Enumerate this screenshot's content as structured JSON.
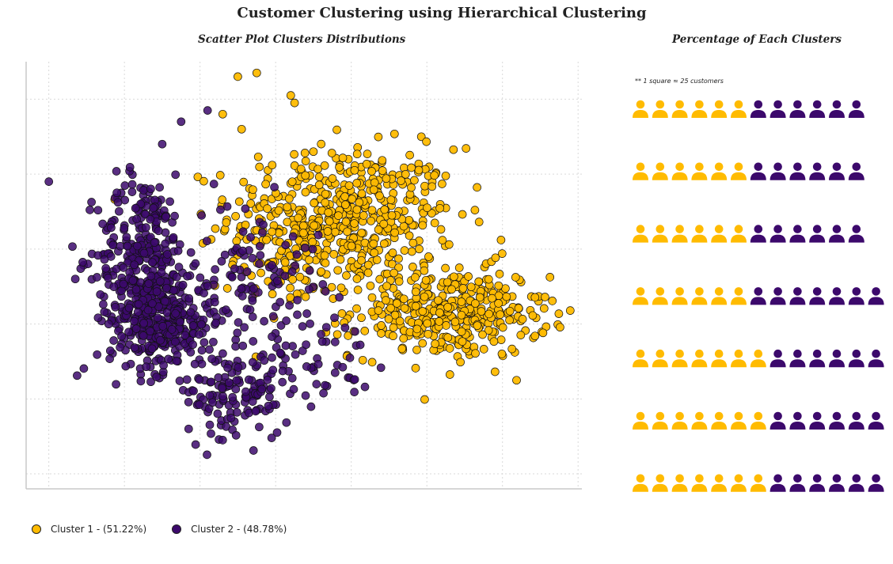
{
  "title": "Customer Clustering using Hierarchical Clustering",
  "scatter_title": "Scatter Plot Clusters Distributions",
  "waffle_title": "Percentage of Each Clusters",
  "waffle_note": "** 1 square ≈ 25 customers",
  "colors": {
    "cluster1": "#FFBB00",
    "cluster2": "#3C096C"
  },
  "legend": [
    {
      "label": "Cluster 1 - (51.22%)",
      "color": "#FFBB00"
    },
    {
      "label": "Cluster 2 - (48.78%)",
      "color": "#3C096C"
    }
  ],
  "chart_data": [
    {
      "type": "scatter",
      "title": "Scatter Plot Clusters Distributions",
      "xlabel": "",
      "ylabel": "",
      "xlim": [
        -3.3,
        4.05
      ],
      "ylim": [
        -2.8,
        2.9
      ],
      "grid": true,
      "tick_labels_visible": false,
      "legend_placement": "bottom-left",
      "series": [
        {
          "name": "Cluster 1 - (51.22%)",
          "color": "#FFBB00",
          "percent": 51.22,
          "clusters": [
            {
              "cx": 0.9,
              "cy": 0.85,
              "sx": 0.75,
              "sy": 0.45,
              "n": 480
            },
            {
              "cx": 2.3,
              "cy": -0.45,
              "sx": 0.65,
              "sy": 0.3,
              "n": 380
            },
            {
              "cx": 0.3,
              "cy": 0.25,
              "sx": 0.45,
              "sy": 0.35,
              "n": 60
            }
          ],
          "outliers": [
            [
              -0.5,
              2.7
            ],
            [
              -0.25,
              2.75
            ],
            [
              0.2,
              2.45
            ],
            [
              0.25,
              2.35
            ],
            [
              -0.7,
              2.2
            ],
            [
              -0.45,
              2.0
            ],
            [
              0.5,
              1.7
            ]
          ]
        },
        {
          "name": "Cluster 2 - (48.78%)",
          "color": "#3C096C",
          "percent": 48.78,
          "clusters": [
            {
              "cx": -1.75,
              "cy": 0.3,
              "sx": 0.3,
              "sy": 0.55,
              "n": 300
            },
            {
              "cx": -1.5,
              "cy": -0.55,
              "sx": 0.35,
              "sy": 0.35,
              "n": 320
            },
            {
              "cx": -0.5,
              "cy": -1.55,
              "sx": 0.35,
              "sy": 0.3,
              "n": 130
            },
            {
              "cx": -0.3,
              "cy": 0.15,
              "sx": 0.45,
              "sy": 0.45,
              "n": 90
            },
            {
              "cx": 0.4,
              "cy": -1.0,
              "sx": 0.45,
              "sy": 0.3,
              "n": 60
            }
          ],
          "outliers": [
            [
              -3.0,
              1.3
            ],
            [
              -2.65,
              -0.0
            ],
            [
              -1.15,
              -2.0
            ],
            [
              -0.7,
              -2.15
            ],
            [
              -1.25,
              2.1
            ],
            [
              -0.9,
              2.25
            ],
            [
              -1.5,
              1.8
            ]
          ]
        }
      ]
    },
    {
      "type": "waffle",
      "title": "Percentage of Each Clusters",
      "unit": "1 square ≈ 25 customers",
      "rows": [
        {
          "cluster1": 6,
          "cluster2": 6
        },
        {
          "cluster1": 6,
          "cluster2": 6
        },
        {
          "cluster1": 6,
          "cluster2": 6
        },
        {
          "cluster1": 6,
          "cluster2": 7
        },
        {
          "cluster1": 7,
          "cluster2": 6
        },
        {
          "cluster1": 7,
          "cluster2": 6
        },
        {
          "cluster1": 7,
          "cluster2": 6
        }
      ]
    }
  ]
}
